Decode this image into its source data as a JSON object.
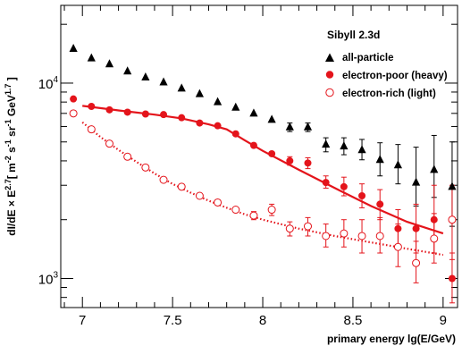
{
  "chart_data": {
    "type": "scatter",
    "title": "",
    "xlabel": "primary energy lg(E/GeV)",
    "ylabel": "dI/dE × E^2.7 [ m^-2 s^-1 sr^-1 GeV^1.7 ]",
    "ylabel_parts": {
      "lhs": "dI/dE × E",
      "lhs_exp": "2.7",
      "bracket_open": "[ m",
      "m_exp": "-2",
      "s": " s",
      "s_exp": "-1",
      "sr": " sr",
      "sr_exp": "-1",
      "gev": " GeV",
      "gev_exp": "1.7",
      "bracket_close": " ]"
    },
    "xlim": [
      6.88,
      9.08
    ],
    "ylim": [
      710,
      25000
    ],
    "yscale": "log",
    "x_ticks": [
      7,
      7.5,
      8,
      8.5,
      9
    ],
    "x_tick_labels": [
      "7",
      "7.5",
      "8",
      "8.5",
      "9"
    ],
    "y_tick_labels": [
      {
        "value": 1000,
        "base": "10",
        "exp": "3"
      },
      {
        "value": 10000,
        "base": "10",
        "exp": "4"
      }
    ],
    "grid": false,
    "legend": {
      "placement": "top-right",
      "title": "Sibyll 2.3d",
      "entries": [
        "all-particle",
        "electron-poor (heavy)",
        "electron-rich (light)"
      ]
    },
    "colors": {
      "all_particle": "#000000",
      "heavy": "#e4141b",
      "light": "#e4141b"
    },
    "series": [
      {
        "name": "all-particle",
        "marker": "triangle",
        "points": [
          {
            "x": 6.95,
            "y": 15000
          },
          {
            "x": 7.05,
            "y": 13400
          },
          {
            "x": 7.15,
            "y": 12500
          },
          {
            "x": 7.25,
            "y": 11500
          },
          {
            "x": 7.35,
            "y": 10700
          },
          {
            "x": 7.45,
            "y": 10100
          },
          {
            "x": 7.55,
            "y": 9400
          },
          {
            "x": 7.65,
            "y": 8800
          },
          {
            "x": 7.75,
            "y": 8000
          },
          {
            "x": 7.85,
            "y": 7500
          },
          {
            "x": 7.95,
            "y": 7000
          },
          {
            "x": 8.05,
            "y": 6500
          },
          {
            "x": 8.15,
            "y": 5950,
            "err": [
              5650,
              6250
            ]
          },
          {
            "x": 8.25,
            "y": 5950,
            "err": [
              5650,
              6250
            ]
          },
          {
            "x": 8.35,
            "y": 4850,
            "err": [
              4450,
              5250
            ]
          },
          {
            "x": 8.45,
            "y": 4750,
            "err": [
              4300,
              5250
            ]
          },
          {
            "x": 8.55,
            "y": 4550,
            "err": [
              4050,
              5150
            ]
          },
          {
            "x": 8.65,
            "y": 4050,
            "err": [
              3350,
              4950
            ]
          },
          {
            "x": 8.75,
            "y": 3800,
            "err": [
              3050,
              4850
            ]
          },
          {
            "x": 8.85,
            "y": 3100,
            "err": [
              2350,
              4700
            ]
          },
          {
            "x": 8.95,
            "y": 3600,
            "err": [
              2600,
              5400
            ]
          },
          {
            "x": 9.05,
            "y": 2950,
            "err": [
              1850,
              5000
            ]
          }
        ]
      },
      {
        "name": "electron-poor (heavy)",
        "marker": "filled-circle",
        "points": [
          {
            "x": 6.95,
            "y": 8300
          },
          {
            "x": 7.05,
            "y": 7600
          },
          {
            "x": 7.15,
            "y": 7300
          },
          {
            "x": 7.25,
            "y": 7100
          },
          {
            "x": 7.35,
            "y": 6950
          },
          {
            "x": 7.45,
            "y": 6900
          },
          {
            "x": 7.55,
            "y": 6650
          },
          {
            "x": 7.65,
            "y": 6250
          },
          {
            "x": 7.75,
            "y": 6050
          },
          {
            "x": 7.85,
            "y": 5500
          },
          {
            "x": 7.95,
            "y": 4800
          },
          {
            "x": 8.05,
            "y": 4350
          },
          {
            "x": 8.15,
            "y": 4000,
            "err": [
              3800,
              4200
            ]
          },
          {
            "x": 8.25,
            "y": 3900,
            "err": [
              3650,
              4150
            ]
          },
          {
            "x": 8.35,
            "y": 3100,
            "err": [
              2900,
              3350
            ]
          },
          {
            "x": 8.45,
            "y": 2950,
            "err": [
              2650,
              3300
            ]
          },
          {
            "x": 8.55,
            "y": 2650,
            "err": [
              2300,
              3050
            ]
          },
          {
            "x": 8.65,
            "y": 2400,
            "err": [
              2000,
              2850
            ]
          },
          {
            "x": 8.75,
            "y": 1800,
            "err": [
              1450,
              2250
            ]
          },
          {
            "x": 8.85,
            "y": 1800,
            "err": [
              1350,
              2400
            ]
          },
          {
            "x": 8.95,
            "y": 2000,
            "err": [
              1350,
              3000
            ]
          },
          {
            "x": 9.05,
            "y": 1000,
            "err": [
              750,
              1350
            ]
          }
        ]
      },
      {
        "name": "electron-rich (light)",
        "marker": "open-circle",
        "points": [
          {
            "x": 6.95,
            "y": 7000
          },
          {
            "x": 7.05,
            "y": 5800
          },
          {
            "x": 7.15,
            "y": 4900
          },
          {
            "x": 7.25,
            "y": 4200
          },
          {
            "x": 7.35,
            "y": 3700
          },
          {
            "x": 7.45,
            "y": 3200
          },
          {
            "x": 7.55,
            "y": 2950
          },
          {
            "x": 7.65,
            "y": 2650
          },
          {
            "x": 7.75,
            "y": 2450
          },
          {
            "x": 7.85,
            "y": 2250
          },
          {
            "x": 7.95,
            "y": 2100,
            "err": [
              2000,
              2200
            ]
          },
          {
            "x": 8.05,
            "y": 2250,
            "err": [
              2100,
              2400
            ]
          },
          {
            "x": 8.15,
            "y": 1800,
            "err": [
              1650,
              1950
            ]
          },
          {
            "x": 8.25,
            "y": 1850,
            "err": [
              1650,
              2050
            ]
          },
          {
            "x": 8.35,
            "y": 1650,
            "err": [
              1450,
              1900
            ]
          },
          {
            "x": 8.45,
            "y": 1700,
            "err": [
              1450,
              2000
            ]
          },
          {
            "x": 8.55,
            "y": 1650,
            "err": [
              1350,
              2000
            ]
          },
          {
            "x": 8.65,
            "y": 1650,
            "err": [
              1350,
              2050
            ]
          },
          {
            "x": 8.75,
            "y": 1450,
            "err": [
              1150,
              1900
            ]
          },
          {
            "x": 8.85,
            "y": 1200,
            "err": [
              950,
              1550
            ]
          },
          {
            "x": 8.95,
            "y": 1600,
            "err": [
              1200,
              2150
            ]
          },
          {
            "x": 9.05,
            "y": 2000,
            "err": [
              1250,
              3000
            ]
          }
        ]
      }
    ],
    "fits": [
      {
        "series": "electron-poor (heavy)",
        "style": "solid",
        "points": [
          {
            "x": 7.0,
            "y": 7650
          },
          {
            "x": 7.2,
            "y": 7250
          },
          {
            "x": 7.4,
            "y": 6900
          },
          {
            "x": 7.55,
            "y": 6600
          },
          {
            "x": 7.7,
            "y": 6150
          },
          {
            "x": 7.8,
            "y": 5800
          },
          {
            "x": 7.9,
            "y": 5100
          },
          {
            "x": 8.0,
            "y": 4500
          },
          {
            "x": 8.2,
            "y": 3600
          },
          {
            "x": 8.4,
            "y": 2900
          },
          {
            "x": 8.6,
            "y": 2350
          },
          {
            "x": 8.8,
            "y": 1950
          },
          {
            "x": 9.0,
            "y": 1700
          }
        ]
      },
      {
        "series": "electron-rich (light)",
        "style": "dotted",
        "points": [
          {
            "x": 7.0,
            "y": 6300
          },
          {
            "x": 7.1,
            "y": 5300
          },
          {
            "x": 7.2,
            "y": 4550
          },
          {
            "x": 7.3,
            "y": 3950
          },
          {
            "x": 7.4,
            "y": 3450
          },
          {
            "x": 7.5,
            "y": 3050
          },
          {
            "x": 7.6,
            "y": 2750
          },
          {
            "x": 7.7,
            "y": 2500
          },
          {
            "x": 7.8,
            "y": 2300
          },
          {
            "x": 7.9,
            "y": 2130
          },
          {
            "x": 8.0,
            "y": 2000
          },
          {
            "x": 8.2,
            "y": 1800
          },
          {
            "x": 8.4,
            "y": 1650
          },
          {
            "x": 8.6,
            "y": 1530
          },
          {
            "x": 8.8,
            "y": 1420
          },
          {
            "x": 9.0,
            "y": 1320
          }
        ]
      }
    ]
  }
}
